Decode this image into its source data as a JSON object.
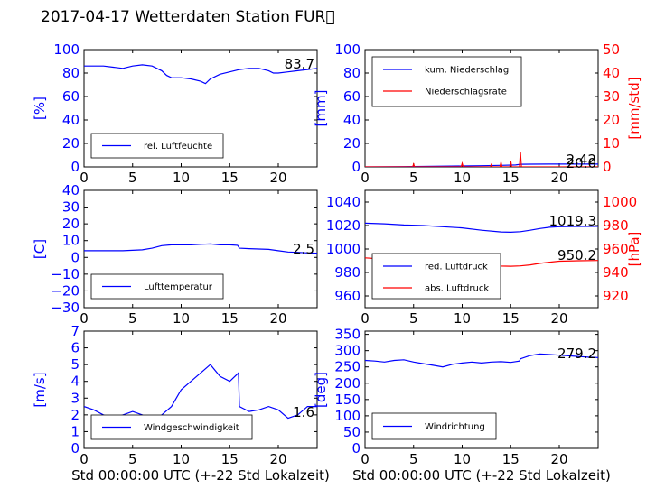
{
  "title": "2017-04-17 Wetterdaten Station FUR\u0000",
  "xlabel": "Std 00:00:00 UTC (+-22 Std Lokalzeit)",
  "colors": {
    "blue": "#0000ff",
    "red": "#ff0000",
    "black": "#000000"
  },
  "chart_data": [
    {
      "type": "line",
      "panel": "humidity",
      "ylabel": "[%]",
      "ylim": [
        0,
        100
      ],
      "yticks": [
        "0",
        "20",
        "40",
        "60",
        "80",
        "100"
      ],
      "xlim": [
        0,
        24
      ],
      "xticks": [
        "0",
        "5",
        "10",
        "15",
        "20"
      ],
      "legend": {
        "placement": "lower-left",
        "entries": [
          "rel. Luftfeuchte"
        ]
      },
      "annotations": [
        "83.7"
      ],
      "series": [
        {
          "name": "rel. Luftfeuchte",
          "color": "#0000ff",
          "x": [
            0,
            1,
            2,
            3,
            4,
            5,
            6,
            7,
            8,
            8.5,
            9,
            10,
            11,
            12,
            12.5,
            13,
            14,
            15,
            16,
            17,
            18,
            19,
            19.5,
            20,
            21,
            22,
            23,
            24
          ],
          "y": [
            86,
            86,
            86,
            85,
            84,
            86,
            87,
            86,
            82,
            78,
            76,
            76,
            75,
            73,
            71,
            75,
            79,
            81,
            83,
            84,
            84,
            82,
            80,
            80,
            81,
            82,
            83,
            84
          ]
        }
      ]
    },
    {
      "type": "line",
      "panel": "precipitation",
      "ylabel": "[mm]",
      "ylim": [
        0,
        100
      ],
      "yticks": [
        "0",
        "20",
        "40",
        "60",
        "80",
        "100"
      ],
      "ylabel2": "[mm/std]",
      "ylim2": [
        0,
        50
      ],
      "yticks2": [
        "0",
        "10",
        "20",
        "30",
        "40",
        "50"
      ],
      "xlim": [
        0,
        24
      ],
      "xticks": [
        "0",
        "5",
        "10",
        "15",
        "20"
      ],
      "legend": {
        "placement": "upper-left",
        "entries": [
          "kum. Niederschlag",
          "Niederschlagsrate"
        ]
      },
      "annotations": [
        "2.42",
        "20.0"
      ],
      "series": [
        {
          "name": "kum. Niederschlag",
          "color": "#0000ff",
          "axis": "left",
          "x": [
            0,
            4,
            6,
            10,
            12,
            14,
            15.5,
            16,
            17,
            19,
            24
          ],
          "y": [
            0,
            0.2,
            0.4,
            0.8,
            1.0,
            1.3,
            1.6,
            2.2,
            2.3,
            2.4,
            2.42
          ]
        },
        {
          "name": "Niederschlagsrate",
          "color": "#ff0000",
          "axis": "right",
          "x": [
            0,
            4.9,
            5,
            5.1,
            9.9,
            10,
            10.1,
            12.9,
            13,
            13.1,
            13.9,
            14,
            14.1,
            14.9,
            15,
            15.1,
            15.9,
            16,
            16.1,
            18,
            24
          ],
          "y": [
            0,
            0,
            1.2,
            0,
            0,
            1.5,
            0,
            0,
            1.0,
            0,
            0,
            2.0,
            0,
            0,
            2.5,
            0,
            0,
            6.5,
            0,
            0,
            0
          ]
        }
      ]
    },
    {
      "type": "line",
      "panel": "temperature",
      "ylabel": "[C]",
      "ylim": [
        -30,
        40
      ],
      "yticks": [
        "−30",
        "−20",
        "−10",
        "0",
        "10",
        "20",
        "30",
        "40"
      ],
      "xlim": [
        0,
        24
      ],
      "xticks": [
        "0",
        "5",
        "10",
        "15",
        "20"
      ],
      "legend": {
        "placement": "lower-left",
        "entries": [
          "Lufttemperatur"
        ]
      },
      "annotations": [
        "2.5"
      ],
      "series": [
        {
          "name": "Lufttemperatur",
          "color": "#0000ff",
          "x": [
            0,
            2,
            4,
            6,
            7,
            8,
            9,
            10,
            11,
            12,
            13,
            14,
            15,
            15.8,
            16,
            17,
            18,
            19,
            20,
            21,
            22,
            23,
            24
          ],
          "y": [
            4,
            4,
            4,
            4.5,
            5.5,
            7,
            7.5,
            7.5,
            7.5,
            7.8,
            8,
            7.5,
            7.5,
            7.2,
            5.5,
            5.2,
            5,
            4.8,
            4,
            3.2,
            3,
            2.7,
            2.5
          ]
        }
      ]
    },
    {
      "type": "line",
      "panel": "pressure",
      "ylim": [
        950,
        1050
      ],
      "yticks": [
        "960",
        "980",
        "1000",
        "1020",
        "1040"
      ],
      "ylabel2": "[hPa]",
      "ylim2": [
        910,
        1010
      ],
      "yticks2": [
        "920",
        "940",
        "960",
        "980",
        "1000"
      ],
      "xlim": [
        0,
        24
      ],
      "xticks": [
        "0",
        "5",
        "10",
        "15",
        "20"
      ],
      "legend": {
        "placement": "lower-left",
        "entries": [
          "red. Luftdruck",
          "abs. Luftdruck"
        ]
      },
      "annotations": [
        "1019.3",
        "950.2"
      ],
      "series": [
        {
          "name": "red. Luftdruck",
          "color": "#0000ff",
          "axis": "left",
          "x": [
            0,
            2,
            4,
            6,
            8,
            10,
            12,
            14,
            15,
            16,
            17,
            18,
            19,
            20,
            22,
            24
          ],
          "y": [
            1022,
            1021.5,
            1020.5,
            1020,
            1019,
            1018,
            1016,
            1014.5,
            1014.3,
            1014.8,
            1016,
            1017.5,
            1018.5,
            1019,
            1019.2,
            1019.3
          ]
        },
        {
          "name": "abs. Luftdruck",
          "color": "#ff0000",
          "axis": "right",
          "x": [
            0,
            2,
            4,
            6,
            8,
            10,
            12,
            14,
            15,
            16,
            17,
            18,
            19,
            20,
            22,
            24
          ],
          "y": [
            952.5,
            951.5,
            950.5,
            950,
            949,
            948,
            946.5,
            945.5,
            945.3,
            945.6,
            946.5,
            947.8,
            948.8,
            949.6,
            950,
            950.2
          ]
        }
      ]
    },
    {
      "type": "line",
      "panel": "wind-speed",
      "ylabel": "[m/s]",
      "ylim": [
        0,
        7
      ],
      "yticks": [
        "0",
        "1",
        "2",
        "3",
        "4",
        "5",
        "6",
        "7"
      ],
      "xlim": [
        0,
        24
      ],
      "xticks": [
        "0",
        "5",
        "10",
        "15",
        "20"
      ],
      "legend": {
        "placement": "lower-center",
        "entries": [
          "Windgeschwindigkeit"
        ]
      },
      "annotations": [
        "1.6"
      ],
      "series": [
        {
          "name": "Windgeschwindigkeit",
          "color": "#0000ff",
          "x": [
            0,
            1,
            2,
            3,
            4,
            5,
            6,
            7,
            8,
            9,
            10,
            11,
            12,
            13,
            14,
            15,
            15.9,
            16,
            17,
            18,
            19,
            20,
            21,
            22,
            23,
            24
          ],
          "y": [
            2.5,
            2.3,
            2.0,
            1.8,
            2.0,
            2.2,
            2.0,
            1.6,
            2.0,
            2.5,
            3.5,
            4.0,
            4.5,
            5.0,
            4.3,
            4.0,
            4.5,
            2.5,
            2.2,
            2.3,
            2.5,
            2.3,
            1.8,
            2.0,
            2.5,
            2.5
          ]
        }
      ]
    },
    {
      "type": "line",
      "panel": "wind-direction",
      "ylabel": "[deg]",
      "ylim": [
        0,
        360
      ],
      "yticks": [
        "0",
        "50",
        "100",
        "150",
        "200",
        "250",
        "300",
        "350"
      ],
      "xlim": [
        0,
        24
      ],
      "xticks": [
        "0",
        "5",
        "10",
        "15",
        "20"
      ],
      "legend": {
        "placement": "lower-left",
        "entries": [
          "Windrichtung"
        ]
      },
      "annotations": [
        "279.2"
      ],
      "series": [
        {
          "name": "Windrichtung",
          "color": "#0000ff",
          "x": [
            0,
            1,
            2,
            3,
            4,
            5,
            6,
            7,
            8,
            9,
            10,
            11,
            12,
            13,
            14,
            15,
            15.9,
            16,
            17,
            18,
            19,
            20,
            21,
            22,
            23,
            24
          ],
          "y": [
            270,
            268,
            265,
            270,
            272,
            265,
            260,
            255,
            250,
            258,
            262,
            265,
            262,
            265,
            266,
            264,
            268,
            275,
            285,
            290,
            288,
            286,
            284,
            282,
            280,
            279
          ]
        }
      ]
    }
  ]
}
